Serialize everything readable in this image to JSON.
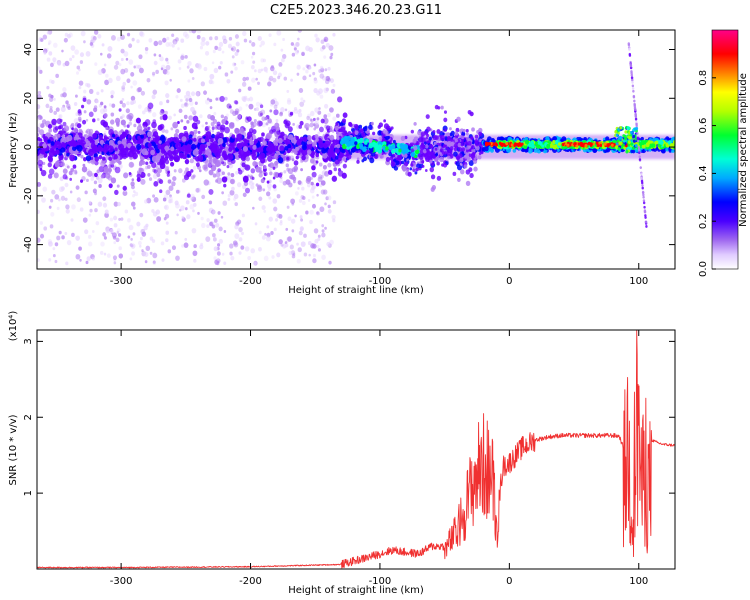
{
  "title": "C2E5.2023.346.20.23.G11",
  "colors": {
    "snr_line": "#f03030",
    "spectral_core": "#5500ee",
    "spectral_halo": "#b070f0",
    "spectral_band": "#22ee33"
  },
  "chart_data": [
    {
      "type": "heatmap",
      "xlabel": "Height of straight line (km)",
      "ylabel": "Frequency (Hz)",
      "xlim": [
        -365,
        128
      ],
      "ylim": [
        -50,
        48
      ],
      "x_ticks": [
        -300,
        -200,
        -100,
        0,
        100
      ],
      "x_tick_labels": [
        "-300",
        "-200",
        "-100",
        "0",
        "100"
      ],
      "y_ticks": [
        -40,
        -20,
        0,
        20,
        40
      ],
      "y_tick_labels": [
        "-40",
        "-20",
        "0",
        "20",
        "40"
      ],
      "grid": false,
      "colorbar": {
        "label": "Normalized spectral amplitude",
        "range": [
          0.0,
          1.0
        ],
        "ticks": [
          0.0,
          0.2,
          0.4,
          0.6,
          0.8
        ],
        "tick_labels": [
          "0.0",
          "0.2",
          "0.4",
          "0.6",
          "0.8"
        ],
        "colormap": [
          "#ffffff",
          "#e6d3ff",
          "#b07cf2",
          "#6a00ff",
          "#0000ff",
          "#00b4ff",
          "#00ffd0",
          "#00ff30",
          "#aaff00",
          "#ffff00",
          "#ff8000",
          "#ff0000",
          "#ff0088"
        ]
      },
      "features": {
        "noise_region_x": [
          -365,
          -135
        ],
        "noise_spread_hz": 48,
        "core_band_x": [
          -365,
          128
        ],
        "core_band_halfwidth_hz": 6,
        "tone_segment_x": [
          -20,
          100
        ],
        "tone_frequency_hz": 1,
        "drifting_line": {
          "x": [
            92,
            106
          ],
          "freq": [
            44,
            -33
          ]
        }
      }
    },
    {
      "type": "line",
      "xlabel": "Height of straight line (km)",
      "ylabel": "SNR (10 * v/v)",
      "y_multiplier_label": "(x10⁴)",
      "xlim": [
        -365,
        128
      ],
      "ylim": [
        0,
        3.15
      ],
      "x_ticks": [
        -300,
        -200,
        -100,
        0,
        100
      ],
      "x_tick_labels": [
        "-300",
        "-200",
        "-100",
        "0",
        "100"
      ],
      "y_ticks": [
        1,
        2,
        3
      ],
      "y_tick_labels": [
        "1",
        "2",
        "3"
      ],
      "grid": false,
      "series": [
        {
          "x": [
            -365,
            -300,
            -200,
            -130,
            -110,
            -100,
            -90,
            -80,
            -70,
            -60,
            -50,
            -40,
            -35,
            -30,
            -25,
            -20,
            -15,
            -12,
            -10,
            -5,
            0,
            5,
            10,
            20,
            30,
            40,
            50,
            60,
            70,
            80,
            85,
            88,
            92,
            95,
            98,
            100,
            102,
            105,
            108,
            110,
            115,
            120,
            128
          ],
          "y": [
            0.02,
            0.02,
            0.03,
            0.06,
            0.15,
            0.2,
            0.25,
            0.22,
            0.2,
            0.3,
            0.3,
            0.6,
            0.9,
            1.2,
            1.5,
            1.6,
            1.5,
            1.3,
            0.6,
            1.35,
            1.4,
            1.5,
            1.6,
            1.7,
            1.74,
            1.76,
            1.76,
            1.76,
            1.76,
            1.76,
            1.75,
            1.6,
            2.4,
            1.0,
            2.6,
            2.9,
            1.4,
            2.0,
            1.5,
            1.7,
            1.66,
            1.64,
            1.63
          ]
        }
      ]
    }
  ]
}
